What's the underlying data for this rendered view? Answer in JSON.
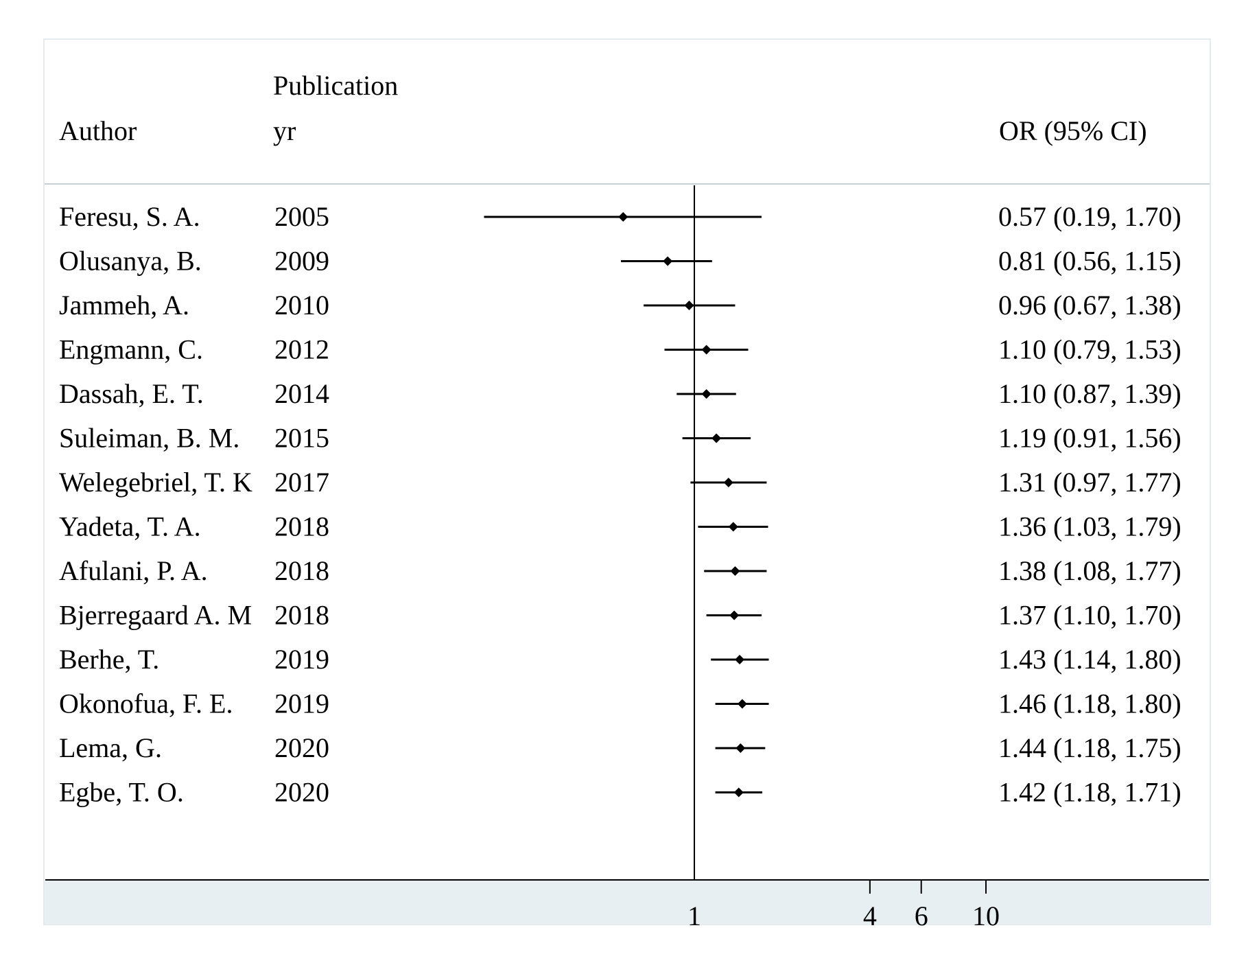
{
  "chart_data": {
    "type": "forest",
    "xscale": "log",
    "reference_line": 1,
    "xticks": [
      1,
      4,
      6,
      10
    ],
    "xtick_labels": [
      "1",
      "4",
      "6",
      "10"
    ],
    "headers": {
      "author": "Author",
      "year_line1": "Publication",
      "year_line2": "yr",
      "or": "OR (95% CI)"
    },
    "studies": [
      {
        "author": "Feresu, S. A.",
        "year": "2005",
        "or": 0.57,
        "lo": 0.19,
        "hi": 1.7,
        "label": "0.57 (0.19, 1.70)"
      },
      {
        "author": "Olusanya, B.",
        "year": "2009",
        "or": 0.81,
        "lo": 0.56,
        "hi": 1.15,
        "label": "0.81 (0.56, 1.15)"
      },
      {
        "author": "Jammeh, A.",
        "year": "2010",
        "or": 0.96,
        "lo": 0.67,
        "hi": 1.38,
        "label": "0.96 (0.67, 1.38)"
      },
      {
        "author": "Engmann, C.",
        "year": "2012",
        "or": 1.1,
        "lo": 0.79,
        "hi": 1.53,
        "label": "1.10 (0.79, 1.53)"
      },
      {
        "author": "Dassah, E. T.",
        "year": "2014",
        "or": 1.1,
        "lo": 0.87,
        "hi": 1.39,
        "label": "1.10 (0.87, 1.39)"
      },
      {
        "author": "Suleiman, B. M.",
        "year": "2015",
        "or": 1.19,
        "lo": 0.91,
        "hi": 1.56,
        "label": "1.19 (0.91, 1.56)"
      },
      {
        "author": "Welegebriel, T. K",
        "year": "2017",
        "or": 1.31,
        "lo": 0.97,
        "hi": 1.77,
        "label": "1.31 (0.97, 1.77)"
      },
      {
        "author": "Yadeta, T. A.",
        "year": "2018",
        "or": 1.36,
        "lo": 1.03,
        "hi": 1.79,
        "label": "1.36 (1.03, 1.79)"
      },
      {
        "author": "Afulani, P. A.",
        "year": "2018",
        "or": 1.38,
        "lo": 1.08,
        "hi": 1.77,
        "label": "1.38 (1.08, 1.77)"
      },
      {
        "author": "Bjerregaard A. M",
        "year": "2018",
        "or": 1.37,
        "lo": 1.1,
        "hi": 1.7,
        "label": "1.37 (1.10, 1.70)"
      },
      {
        "author": "Berhe, T.",
        "year": "2019",
        "or": 1.43,
        "lo": 1.14,
        "hi": 1.8,
        "label": "1.43 (1.14, 1.80)"
      },
      {
        "author": "Okonofua, F. E.",
        "year": "2019",
        "or": 1.46,
        "lo": 1.18,
        "hi": 1.8,
        "label": "1.46 (1.18, 1.80)"
      },
      {
        "author": "Lema, G.",
        "year": "2020",
        "or": 1.44,
        "lo": 1.18,
        "hi": 1.75,
        "label": "1.44 (1.18, 1.75)"
      },
      {
        "author": "Egbe, T. O.",
        "year": "2020",
        "or": 1.42,
        "lo": 1.18,
        "hi": 1.71,
        "label": "1.42 (1.18, 1.71)"
      }
    ],
    "colors": {
      "background": "#ffffff",
      "axis_band": "#e8eff2",
      "frame": "#e4ebee",
      "ink": "#000000"
    }
  }
}
